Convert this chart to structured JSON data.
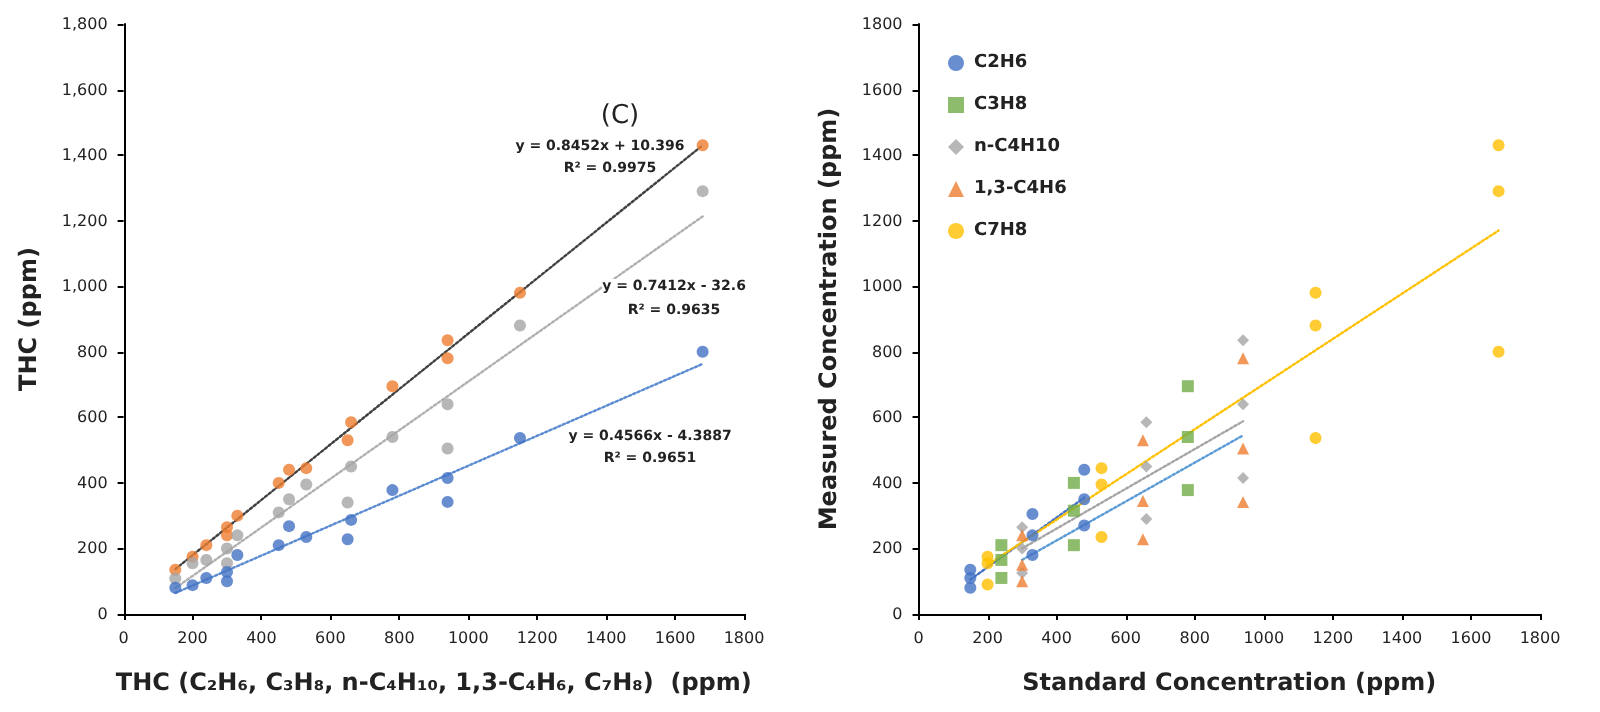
{
  "chart_data": [
    {
      "type": "scatter",
      "xlabel": "THC (C₂H₆, C₃H₈, n-C₄H₁₀, 1,3-C₄H₆, C₇H₈)  (ppm)",
      "ylabel": "THC (ppm)",
      "xlim": [
        0,
        1800
      ],
      "xticks": [
        0,
        200,
        400,
        600,
        800,
        1000,
        1200,
        1400,
        1600,
        1800
      ],
      "ylim": [
        0,
        1800
      ],
      "yticks": [
        0,
        200,
        400,
        600,
        800,
        {
          "value": 1000,
          "label": "1,000"
        },
        {
          "value": 1200,
          "label": "1,200"
        },
        {
          "value": 1400,
          "label": "1,400"
        },
        {
          "value": 1600,
          "label": "1,600"
        },
        {
          "value": 1800,
          "label": "1,800"
        }
      ],
      "marker": "circle",
      "legend": false,
      "annotations": [
        "(C)",
        "y = 0.8452x + 10.396",
        "R² = 0.9975",
        "y = 0.7412x - 32.6",
        "R² = 0.9635",
        "y = 0.4566x - 4.3887",
        "R² = 0.9651"
      ],
      "series": [
        {
          "color": "#ed7d31",
          "x": [
            150,
            200,
            240,
            300,
            300,
            330,
            450,
            480,
            530,
            650,
            660,
            780,
            940,
            940,
            1150,
            1680
          ],
          "values": [
            135,
            175,
            210,
            240,
            265,
            300,
            400,
            440,
            445,
            530,
            585,
            695,
            780,
            835,
            980,
            1430
          ]
        },
        {
          "color": "#a5a5a5",
          "x": [
            150,
            200,
            240,
            300,
            300,
            330,
            450,
            480,
            530,
            650,
            660,
            780,
            940,
            940,
            1150,
            1680
          ],
          "values": [
            108,
            155,
            165,
            155,
            200,
            240,
            310,
            350,
            395,
            340,
            450,
            540,
            505,
            640,
            880,
            1290
          ]
        },
        {
          "color": "#4472c4",
          "x": [
            150,
            200,
            240,
            300,
            300,
            330,
            450,
            480,
            530,
            650,
            660,
            780,
            940,
            940,
            1150,
            1680
          ],
          "values": [
            80,
            88,
            110,
            100,
            128,
            180,
            210,
            268,
            235,
            228,
            287,
            378,
            342,
            415,
            537,
            800
          ]
        },
        {
          "type": "line",
          "color": "#404040",
          "marker": "none",
          "line_style": "dotted",
          "x": [
            150,
            1680
          ],
          "values": [
            137,
            1430
          ]
        },
        {
          "type": "line",
          "color": "#b0b0b0",
          "marker": "none",
          "line_style": "dotted",
          "x": [
            150,
            1680
          ],
          "values": [
            79,
            1213
          ]
        },
        {
          "type": "line",
          "color": "#5b8bd0",
          "marker": "none",
          "line_style": "dotted",
          "x": [
            150,
            1680
          ],
          "values": [
            64,
            763
          ]
        }
      ]
    },
    {
      "type": "scatter",
      "xlabel": "Standard Concentration (ppm)",
      "ylabel": "Measured Concentration (ppm)",
      "xlim": [
        0,
        1800
      ],
      "xticks": [
        0,
        200,
        400,
        600,
        800,
        1000,
        1200,
        1400,
        1600,
        1800
      ],
      "ylim": [
        0,
        1800
      ],
      "yticks": [
        0,
        200,
        400,
        600,
        800,
        1000,
        1200,
        1400,
        1600,
        1800
      ],
      "legend": "top left",
      "series": [
        {
          "name": "C2H6",
          "color": "#4472c4",
          "marker": "circle",
          "x": [
            150,
            150,
            150,
            330,
            330,
            330,
            480,
            480,
            480
          ],
          "values": [
            135,
            110,
            80,
            305,
            240,
            180,
            440,
            350,
            270
          ]
        },
        {
          "name": "C3H8",
          "color": "#70ad47",
          "marker": "square",
          "x": [
            240,
            240,
            240,
            450,
            450,
            450,
            780,
            780,
            780
          ],
          "values": [
            210,
            165,
            110,
            400,
            315,
            210,
            695,
            540,
            378
          ]
        },
        {
          "name": "n-C4H10",
          "color": "#a5a5a5",
          "marker": "diamond",
          "x": [
            300,
            300,
            300,
            660,
            660,
            660,
            940,
            940,
            940
          ],
          "values": [
            265,
            200,
            125,
            585,
            450,
            290,
            835,
            640,
            415
          ]
        },
        {
          "name": "1,3-C4H6",
          "color": "#ed7d31",
          "marker": "triangle",
          "x": [
            300,
            300,
            300,
            650,
            650,
            650,
            940,
            940,
            940
          ],
          "values": [
            240,
            150,
            100,
            530,
            345,
            228,
            780,
            505,
            342
          ]
        },
        {
          "name": "C7H8",
          "color": "#ffc000",
          "marker": "circle",
          "x": [
            200,
            200,
            200,
            530,
            530,
            530,
            1150,
            1150,
            1150,
            1680,
            1680,
            1680
          ],
          "values": [
            175,
            155,
            90,
            445,
            395,
            235,
            980,
            880,
            537,
            1430,
            1290,
            800
          ]
        },
        {
          "type": "line",
          "color": "#4472c4",
          "marker": "none",
          "line_style": "dotted",
          "x": [
            150,
            480
          ],
          "values": [
            105,
            355
          ]
        },
        {
          "type": "line",
          "color": "#a5a5a5",
          "marker": "none",
          "line_style": "dotted",
          "x": [
            300,
            940
          ],
          "values": [
            200,
            588
          ]
        },
        {
          "type": "line",
          "color": "#5b9bd5",
          "marker": "none",
          "line_style": "dotted",
          "x": [
            300,
            940
          ],
          "values": [
            165,
            545
          ]
        },
        {
          "type": "line",
          "color": "#ffc000",
          "marker": "none",
          "line_style": "dotted",
          "x": [
            200,
            1680
          ],
          "values": [
            150,
            1170
          ]
        }
      ]
    }
  ]
}
